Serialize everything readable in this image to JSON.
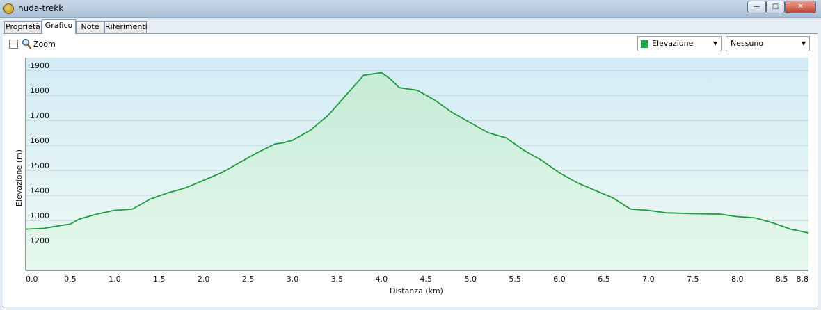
{
  "window": {
    "title": "nuda-trekk"
  },
  "tabs": [
    {
      "label": "Proprietà"
    },
    {
      "label": "Grafico"
    },
    {
      "label": "Note"
    },
    {
      "label": "Riferimenti"
    }
  ],
  "toolbar": {
    "zoom_label": "Zoom",
    "series_select": "Elevazione",
    "second_select": "Nessuno"
  },
  "colors": {
    "line": "#1f9a3f",
    "swatch": "#21a548"
  },
  "chart_data": {
    "type": "area",
    "xlabel": "Distanza  (km)",
    "ylabel": "Elevazione (m)",
    "xlim": [
      0,
      8.8
    ],
    "ylim": [
      1100,
      1950
    ],
    "x_ticks": [
      "0.0",
      "0.5",
      "1.0",
      "1.5",
      "2.0",
      "2.5",
      "3.0",
      "3.5",
      "4.0",
      "4.5",
      "5.0",
      "5.5",
      "6.0",
      "6.5",
      "7.0",
      "7.5",
      "8.0",
      "8.5",
      "8.8"
    ],
    "y_ticks": [
      "1200",
      "1300",
      "1400",
      "1500",
      "1600",
      "1700",
      "1800",
      "1900"
    ],
    "grid": true,
    "series": [
      {
        "x": [
          0,
          0.2,
          0.4,
          0.5,
          0.6,
          0.8,
          1.0,
          1.2,
          1.4,
          1.6,
          1.8,
          2.0,
          2.2,
          2.4,
          2.6,
          2.8,
          2.9,
          3.0,
          3.2,
          3.4,
          3.6,
          3.8,
          4.0,
          4.1,
          4.2,
          4.4,
          4.6,
          4.8,
          5.0,
          5.2,
          5.4,
          5.6,
          5.8,
          6.0,
          6.2,
          6.4,
          6.6,
          6.8,
          7.0,
          7.2,
          7.5,
          7.8,
          8.0,
          8.2,
          8.4,
          8.6,
          8.8
        ],
        "y": [
          1265,
          1268,
          1280,
          1285,
          1305,
          1325,
          1340,
          1345,
          1385,
          1410,
          1430,
          1460,
          1490,
          1530,
          1570,
          1605,
          1610,
          1620,
          1660,
          1720,
          1800,
          1880,
          1890,
          1865,
          1830,
          1820,
          1780,
          1730,
          1690,
          1650,
          1630,
          1580,
          1540,
          1490,
          1450,
          1420,
          1390,
          1345,
          1340,
          1330,
          1327,
          1325,
          1315,
          1310,
          1290,
          1265,
          1250
        ]
      }
    ]
  }
}
